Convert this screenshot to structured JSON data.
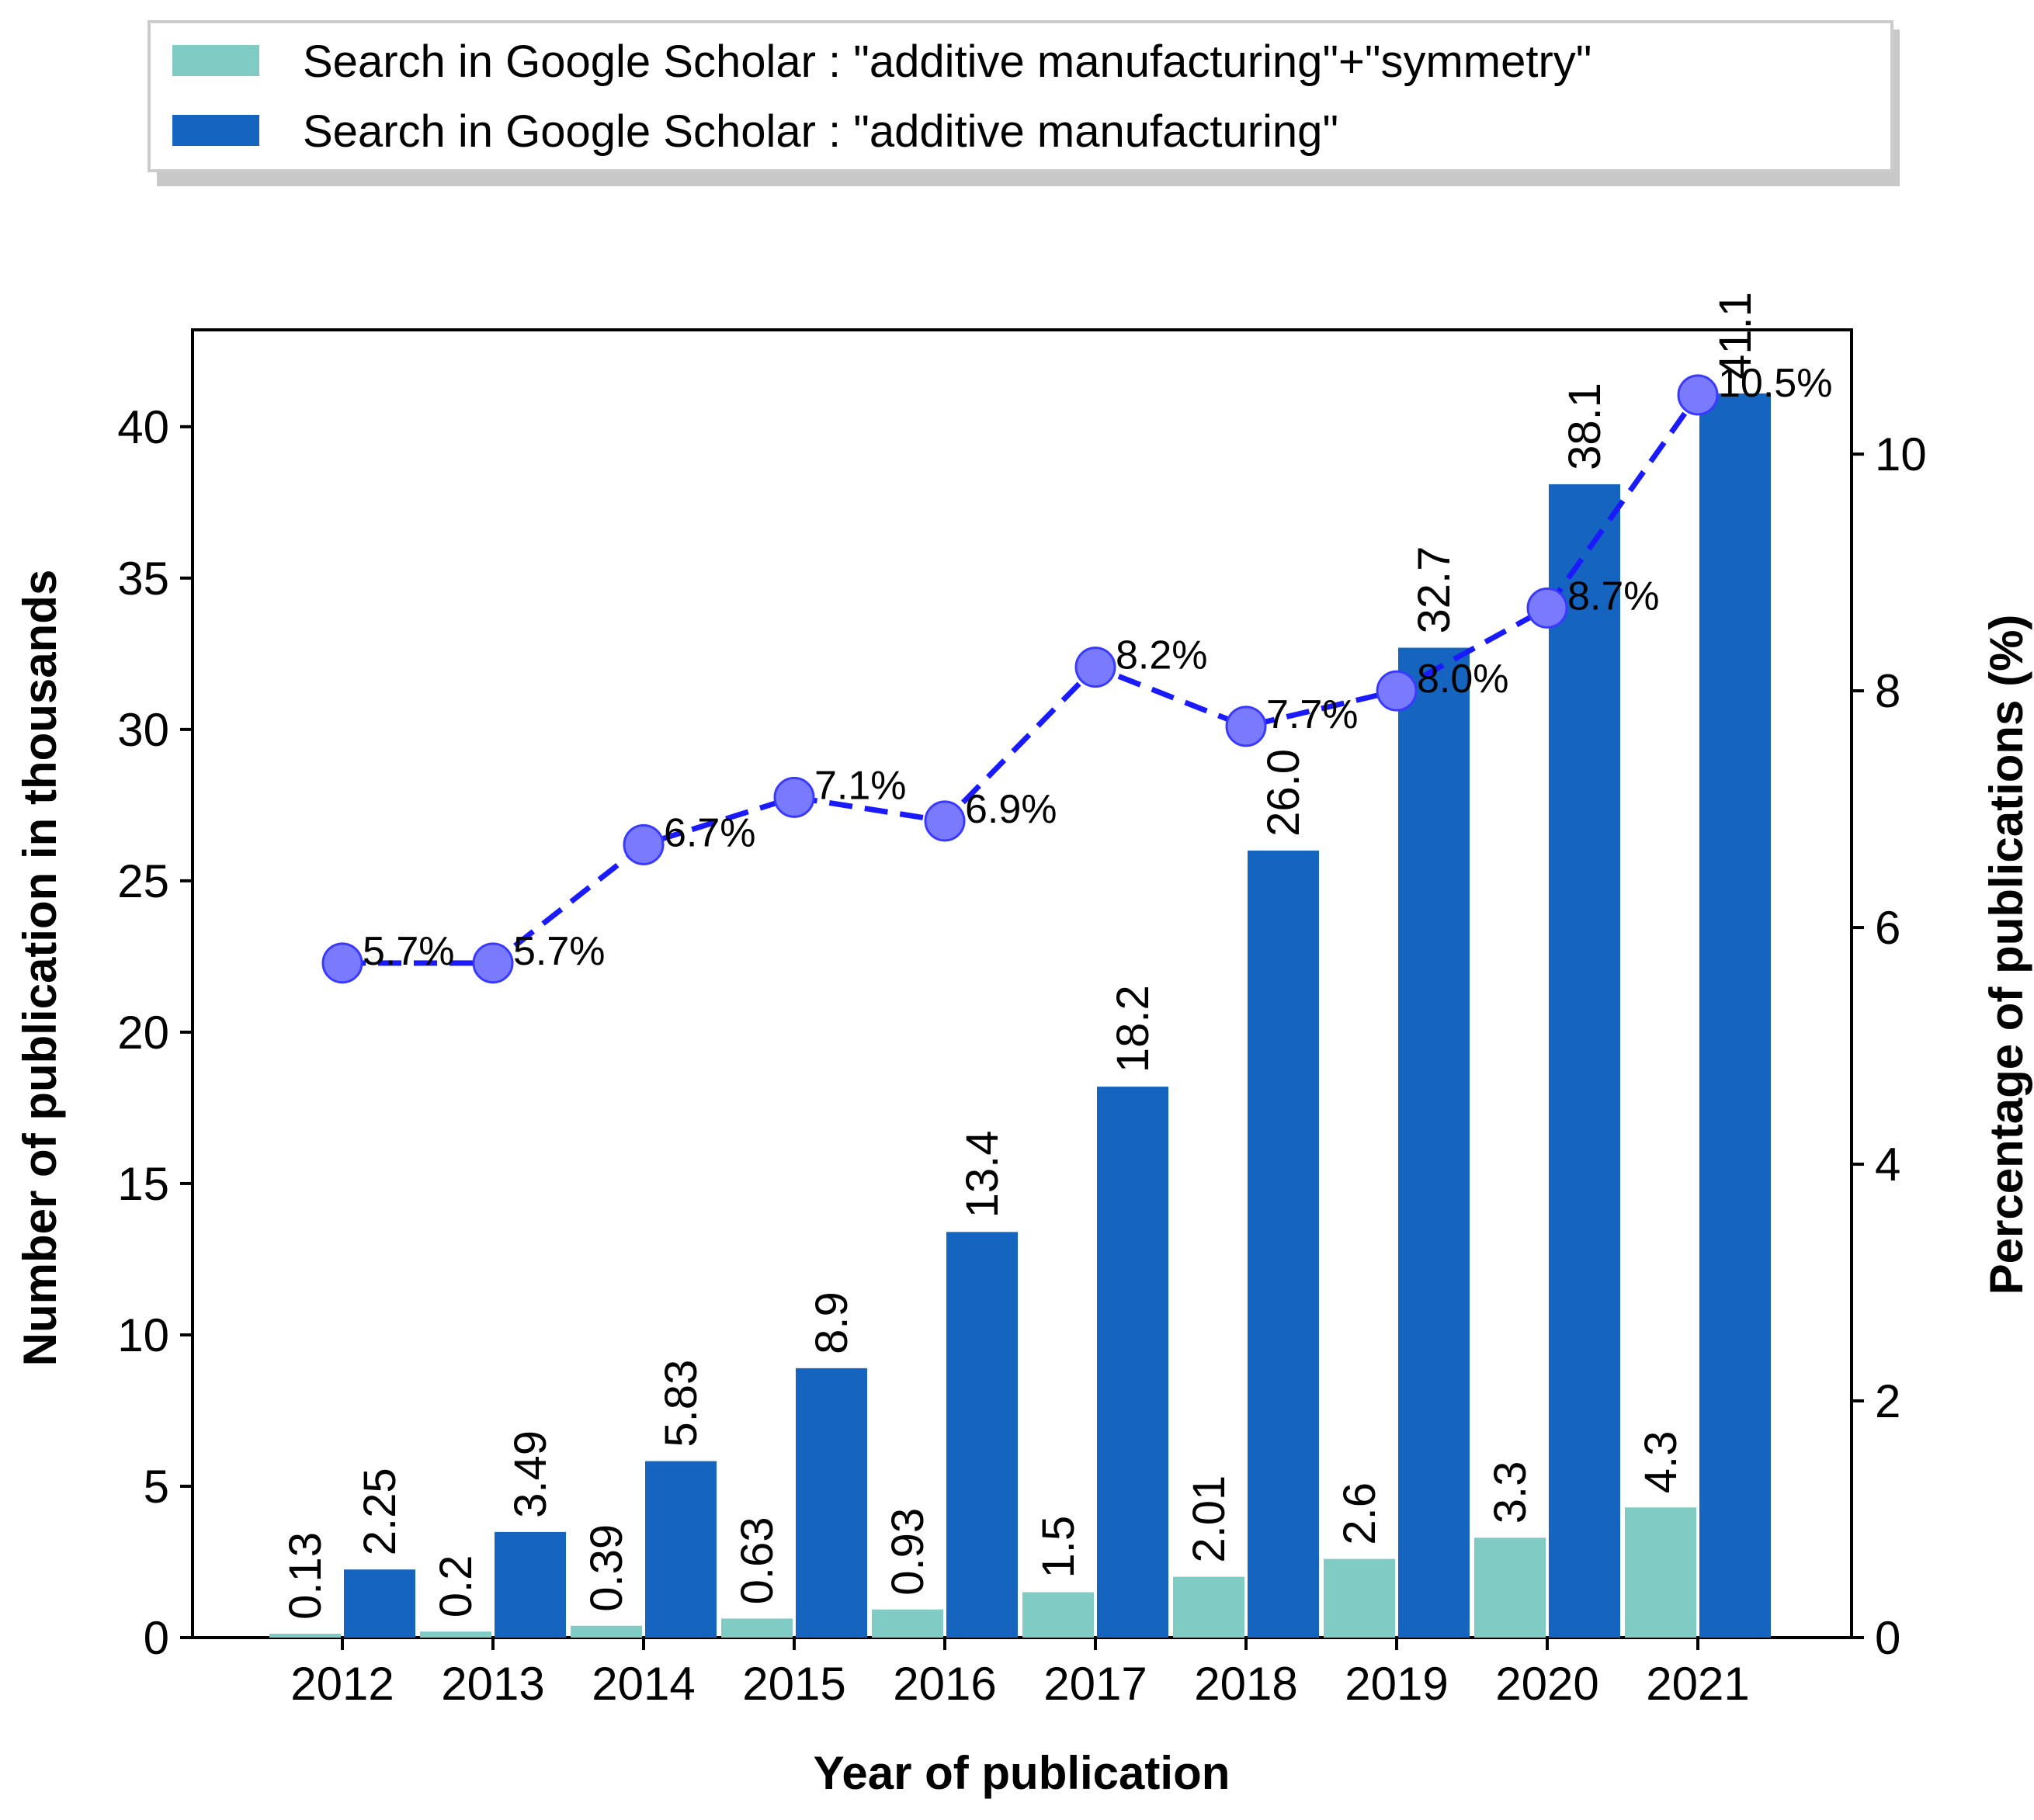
{
  "chart_data": {
    "type": "bar",
    "xlabel": "Year of publication",
    "ylabel": "Number of publication in thousands",
    "y2label": "Percentage of publications (%)",
    "ylim": [
      0,
      43.2
    ],
    "y2lim": [
      0,
      11.05
    ],
    "yticks": [
      "0",
      "5",
      "10",
      "15",
      "20",
      "25",
      "30",
      "35",
      "40"
    ],
    "y2ticks": [
      "0",
      "2",
      "4",
      "6",
      "8",
      "10"
    ],
    "categories": [
      "2012",
      "2013",
      "2014",
      "2015",
      "2016",
      "2017",
      "2018",
      "2019",
      "2020",
      "2021"
    ],
    "series": [
      {
        "name": "Search in Google Scholar : \"additive manufacturing\"+\"symmetry\"",
        "color": "#80cbc4",
        "values": [
          0.13,
          0.2,
          0.39,
          0.63,
          0.93,
          1.5,
          2.01,
          2.6,
          3.3,
          4.3
        ],
        "labels": [
          "0.13",
          "0.2",
          "0.39",
          "0.63",
          "0.93",
          "1.5",
          "2.01",
          "2.6",
          "3.3",
          "4.3"
        ]
      },
      {
        "name": "Search in Google Scholar : \"additive manufacturing\"",
        "color": "#1565c0",
        "values": [
          2.25,
          3.49,
          5.83,
          8.9,
          13.4,
          18.2,
          26.0,
          32.7,
          38.1,
          41.1
        ],
        "labels": [
          "2.25",
          "3.49",
          "5.83",
          "8.9",
          "13.4",
          "18.2",
          "26.0",
          "32.7",
          "38.1",
          "41.1"
        ]
      }
    ],
    "percentage_line": {
      "color": "#1a1aff",
      "values": [
        5.7,
        5.7,
        6.7,
        7.1,
        6.9,
        8.2,
        7.7,
        8.0,
        8.7,
        10.5
      ],
      "labels": [
        "5.7%",
        "5.7%",
        "6.7%",
        "7.1%",
        "6.9%",
        "8.2%",
        "7.7%",
        "8.0%",
        "8.7%",
        "10.5%"
      ]
    },
    "legend_position": "top"
  }
}
